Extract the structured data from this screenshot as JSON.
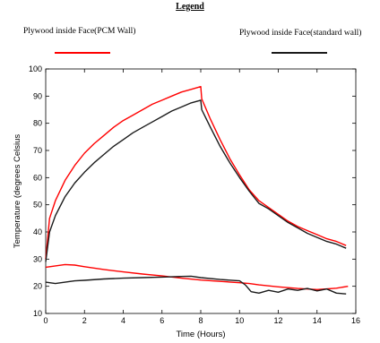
{
  "legend": {
    "title": "Legend",
    "entries": [
      {
        "label": "Plywood inside Face(PCM Wall)",
        "color": "#ff0000"
      },
      {
        "label": "Plywood inside Face(standard wall)",
        "color": "#1a1a1a"
      }
    ]
  },
  "chart_data": {
    "type": "line",
    "title": "",
    "xlabel": "Time (Hours)",
    "ylabel": "Temperature (degrees Celsius",
    "xlim": [
      0,
      16
    ],
    "ylim": [
      10,
      100
    ],
    "xticks": [
      0,
      2,
      4,
      6,
      8,
      10,
      12,
      14,
      16
    ],
    "yticks": [
      10,
      20,
      30,
      40,
      50,
      60,
      70,
      80,
      90,
      100
    ],
    "grid": false,
    "legend_position": "top",
    "series": [
      {
        "name": "Plywood inside Face(PCM Wall)",
        "color": "#ff0000",
        "segment": "exterior",
        "x": [
          0,
          0.2,
          0.5,
          1,
          1.5,
          2,
          2.5,
          3,
          3.5,
          4,
          4.5,
          5,
          5.5,
          6,
          6.5,
          7,
          7.5,
          8,
          8.05,
          8.5,
          9,
          9.5,
          10,
          10.5,
          11,
          11.5,
          12,
          12.5,
          13,
          13.5,
          14,
          14.5,
          15,
          15.5
        ],
        "y": [
          30,
          45,
          51.5,
          59,
          64.5,
          69,
          72.5,
          75.5,
          78.5,
          81,
          83,
          85,
          87,
          88.5,
          90,
          91.5,
          92.5,
          93.5,
          89,
          81.5,
          74,
          67,
          61,
          55.5,
          51.5,
          49,
          46.5,
          44,
          42,
          40.5,
          39,
          37.5,
          36.5,
          35
        ]
      },
      {
        "name": "Plywood inside Face(standard wall)",
        "color": "#1a1a1a",
        "segment": "exterior",
        "x": [
          0,
          0.2,
          0.5,
          1,
          1.5,
          2,
          2.5,
          3,
          3.5,
          4,
          4.5,
          5,
          5.5,
          6,
          6.5,
          7,
          7.5,
          8,
          8.05,
          8.5,
          9,
          9.5,
          10,
          10.5,
          11,
          11.5,
          12,
          12.5,
          13,
          13.5,
          14,
          14.5,
          15,
          15.5
        ],
        "y": [
          29,
          40,
          46,
          53,
          58,
          62,
          65.5,
          68.5,
          71.5,
          74,
          76.5,
          78.5,
          80.5,
          82.5,
          84.5,
          86,
          87.5,
          88.5,
          85,
          78.5,
          71.5,
          65.5,
          60,
          55,
          50.5,
          48.5,
          46,
          43.5,
          41.5,
          39.5,
          38,
          36.5,
          35.5,
          34
        ]
      },
      {
        "name": "Plywood inside Face(PCM Wall)",
        "color": "#ff0000",
        "segment": "interior",
        "x": [
          0,
          0.5,
          1,
          1.5,
          2,
          3,
          4,
          5,
          6,
          7,
          8,
          9,
          10,
          10.5,
          11,
          12,
          13,
          14,
          15,
          15.6
        ],
        "y": [
          27,
          27.5,
          28,
          27.8,
          27.2,
          26.2,
          25.3,
          24.5,
          23.8,
          23.0,
          22.3,
          21.8,
          21.3,
          21.0,
          20.5,
          19.8,
          19.2,
          18.8,
          19.3,
          20.0
        ]
      },
      {
        "name": "Plywood inside Face(standard wall)",
        "color": "#1a1a1a",
        "segment": "interior",
        "x": [
          0,
          0.5,
          1,
          1.5,
          2,
          3,
          4,
          5,
          6,
          7,
          7.5,
          8,
          9,
          10,
          10.3,
          10.6,
          11,
          11.5,
          12,
          12.5,
          13,
          13.5,
          14,
          14.5,
          15,
          15.5
        ],
        "y": [
          21.5,
          21,
          21.5,
          22,
          22.2,
          22.7,
          23.0,
          23.2,
          23.4,
          23.6,
          23.7,
          23.2,
          22.5,
          22.0,
          20.5,
          18.0,
          17.5,
          18.5,
          17.8,
          19.0,
          18.5,
          19.2,
          18.3,
          19.0,
          17.5,
          17.2
        ]
      }
    ]
  }
}
